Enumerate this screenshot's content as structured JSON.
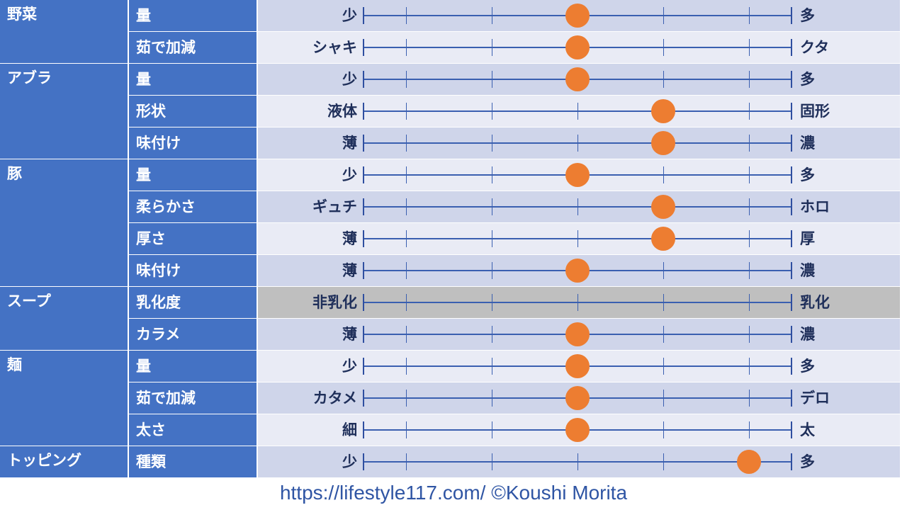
{
  "categories": [
    {
      "label": "野菜",
      "rows": [
        {
          "item": "量",
          "left": "少",
          "right": "多",
          "value": 0.5
        },
        {
          "item": "茹で加減",
          "left": "シャキ",
          "right": "クタ",
          "value": 0.5
        }
      ]
    },
    {
      "label": "アブラ",
      "rows": [
        {
          "item": "量",
          "left": "少",
          "right": "多",
          "value": 0.5
        },
        {
          "item": "形状",
          "left": "液体",
          "right": "固形",
          "value": 0.7
        },
        {
          "item": "味付け",
          "left": "薄",
          "right": "濃",
          "value": 0.7
        }
      ]
    },
    {
      "label": "豚",
      "rows": [
        {
          "item": "量",
          "left": "少",
          "right": "多",
          "value": 0.5
        },
        {
          "item": "柔らかさ",
          "left": "ギュチ",
          "right": "ホロ",
          "value": 0.7
        },
        {
          "item": "厚さ",
          "left": "薄",
          "right": "厚",
          "value": 0.7
        },
        {
          "item": "味付け",
          "left": "薄",
          "right": "濃",
          "value": 0.5
        }
      ]
    },
    {
      "label": "スープ",
      "rows": [
        {
          "item": "乳化度",
          "left": "非乳化",
          "right": "乳化",
          "value": null,
          "disabled": true
        },
        {
          "item": "カラメ",
          "left": "薄",
          "right": "濃",
          "value": 0.5
        }
      ]
    },
    {
      "label": "麺",
      "rows": [
        {
          "item": "量",
          "left": "少",
          "right": "多",
          "value": 0.5
        },
        {
          "item": "茹で加減",
          "left": "カタメ",
          "right": "デロ",
          "value": 0.5
        },
        {
          "item": "太さ",
          "left": "細",
          "right": "太",
          "value": 0.5
        }
      ]
    },
    {
      "label": "トッピング",
      "rows": [
        {
          "item": "種類",
          "left": "少",
          "right": "多",
          "value": 0.9
        }
      ]
    }
  ],
  "footer": "https://lifestyle117.com/  ©Koushi Morita",
  "colors": {
    "header_bg": "#4472c4",
    "row_dark": "#cfd5ea",
    "row_light": "#e9ebf5",
    "row_disabled": "#bfbfbf",
    "dot": "#ed7d31"
  }
}
